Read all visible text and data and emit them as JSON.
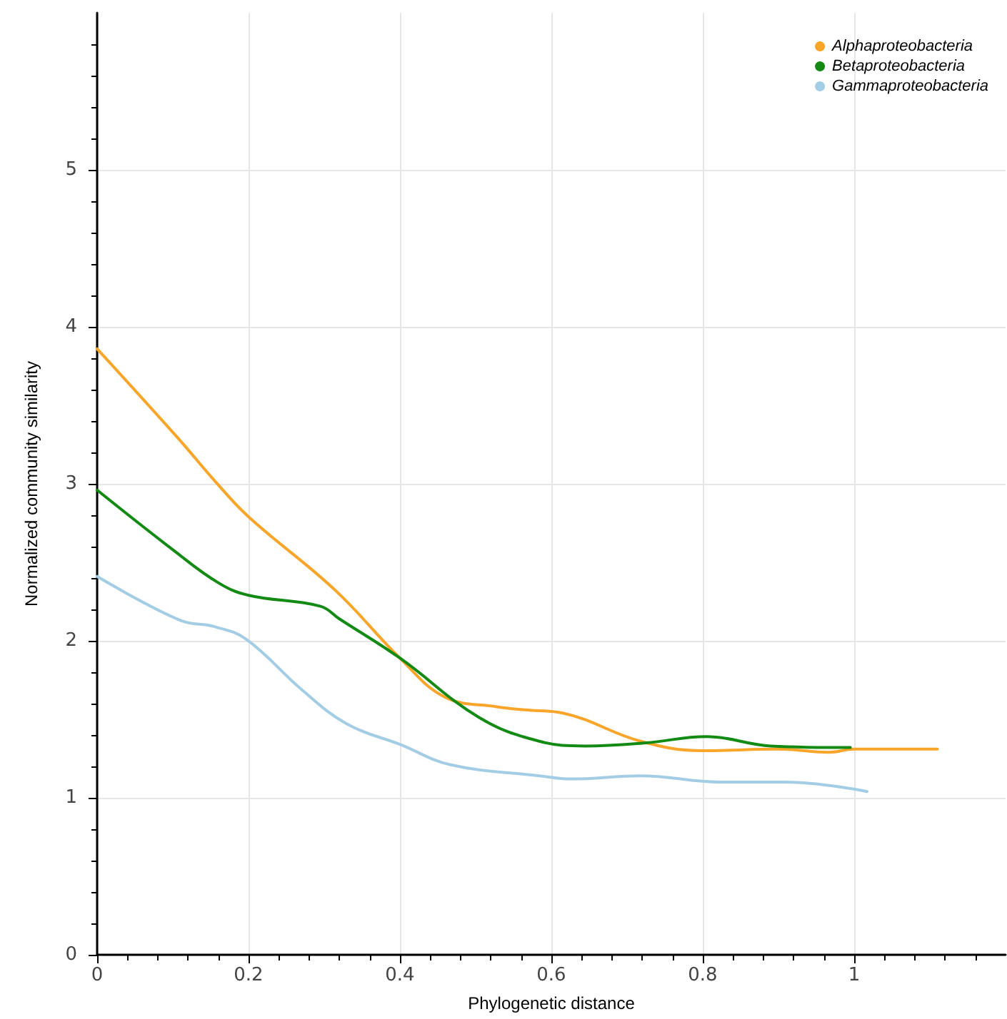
{
  "chart_data": {
    "type": "line",
    "xlabel": "Phylogenetic distance",
    "ylabel": "Normalized community similarity",
    "xlim": [
      0,
      1.2
    ],
    "xticks": [
      0,
      0.2,
      0.4,
      0.6,
      0.8,
      1
    ],
    "ylim": [
      0,
      6
    ],
    "yticks": [
      0,
      1,
      2,
      3,
      4,
      5
    ],
    "grid": true,
    "legend": "top right",
    "marker": "none",
    "line_style": "solid",
    "series": [
      {
        "name": "Alphaproteobacteria",
        "color": "#f9a52a",
        "x": [
          0,
          0.107,
          0.157,
          0.2,
          0.315,
          0.4,
          0.46,
          0.528,
          0.565,
          0.615,
          0.718,
          0.8,
          0.9,
          0.967,
          1.0,
          1.11
        ],
        "values": [
          3.86,
          3.29,
          3.01,
          2.79,
          2.32,
          1.89,
          1.64,
          1.58,
          1.56,
          1.54,
          1.36,
          1.3,
          1.31,
          1.29,
          1.31,
          1.31
        ]
      },
      {
        "name": "Betaproteobacteria",
        "color": "#138a13",
        "x": [
          0,
          0.1,
          0.16,
          0.2,
          0.295,
          0.32,
          0.4,
          0.505,
          0.584,
          0.645,
          0.725,
          0.805,
          0.89,
          0.995
        ],
        "values": [
          2.96,
          2.58,
          2.37,
          2.29,
          2.22,
          2.14,
          1.89,
          1.51,
          1.36,
          1.33,
          1.35,
          1.39,
          1.33,
          1.32
        ]
      },
      {
        "name": "Gammaproteobacteria",
        "color": "#a3cde4",
        "x": [
          0,
          0.11,
          0.155,
          0.197,
          0.27,
          0.33,
          0.4,
          0.467,
          0.584,
          0.626,
          0.718,
          0.823,
          0.91,
          1.017
        ],
        "values": [
          2.41,
          2.13,
          2.09,
          2.01,
          1.69,
          1.47,
          1.34,
          1.21,
          1.14,
          1.12,
          1.14,
          1.1,
          1.1,
          1.04
        ]
      }
    ]
  }
}
